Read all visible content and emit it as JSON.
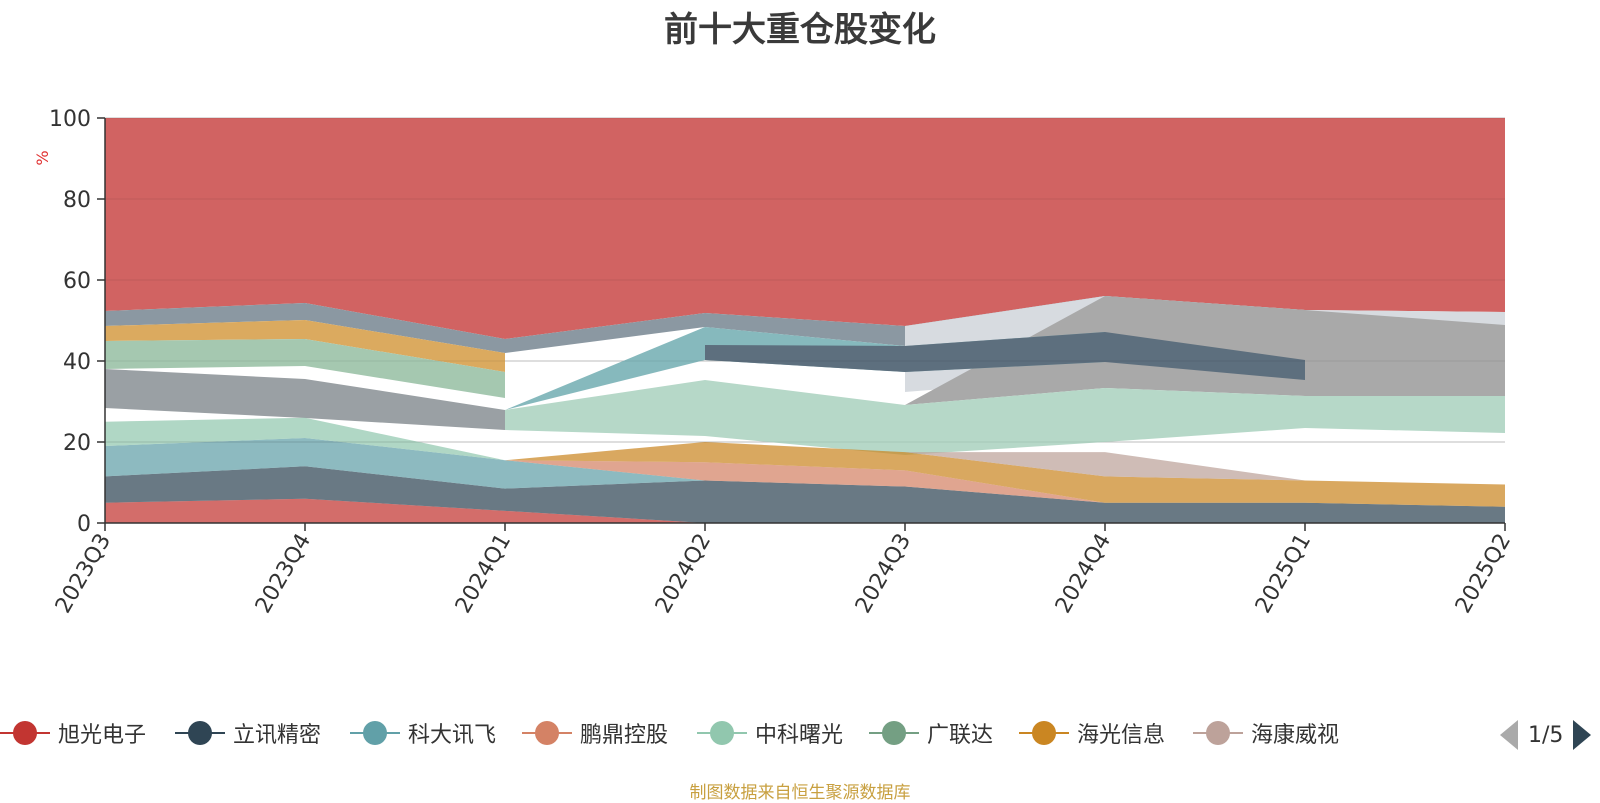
{
  "title": "前十大重仓股变化",
  "source_note": "制图数据来自恒生聚源数据库",
  "pager": {
    "text": "1/5"
  },
  "chart_data": {
    "type": "area",
    "stacked": true,
    "title": "前十大重仓股变化",
    "ylabel": "%",
    "ylim": [
      0,
      100
    ],
    "yticks": [
      0,
      20,
      40,
      60,
      80,
      100
    ],
    "ytick_labels": [
      "0",
      "20",
      "40",
      "60",
      "80",
      "100"
    ],
    "categories": [
      "2023Q3",
      "2023Q4",
      "2024Q1",
      "2024Q2",
      "2024Q3",
      "2024Q4",
      "2025Q1",
      "2025Q2"
    ],
    "series": [
      {
        "name": "旭光电子",
        "color": "#c23531",
        "values": [
          5,
          6,
          3,
          0,
          0,
          0,
          0,
          0
        ]
      },
      {
        "name": "立讯精密",
        "color": "#2f4554",
        "values": [
          6.5,
          8,
          5.5,
          10.5,
          9,
          5,
          5,
          4
        ]
      },
      {
        "name": "科大讯飞",
        "color": "#61a0a8",
        "values": [
          7.5,
          7,
          7,
          0,
          0,
          0,
          0,
          0
        ]
      },
      {
        "name": "鹏鼎控股",
        "color": "#d48265",
        "values": [
          0,
          0,
          0,
          4.5,
          4,
          0,
          0,
          0
        ]
      },
      {
        "name": "中科曙光",
        "color": "#91c7ae",
        "values": [
          6,
          5,
          0,
          0,
          0,
          0,
          0,
          0
        ]
      },
      {
        "name": "广联达",
        "color": "#749f83",
        "values": [
          0,
          0,
          0,
          0,
          0,
          0,
          0,
          0
        ]
      },
      {
        "name": "海光信息",
        "color": "#ca8622",
        "values": [
          0,
          0,
          0,
          5,
          4.5,
          6.5,
          5.5,
          5.5
        ]
      },
      {
        "name": "海康威视",
        "color": "#bda29a",
        "values": [
          0,
          0,
          0,
          0,
          0,
          6,
          0,
          0
        ]
      }
    ]
  }
}
